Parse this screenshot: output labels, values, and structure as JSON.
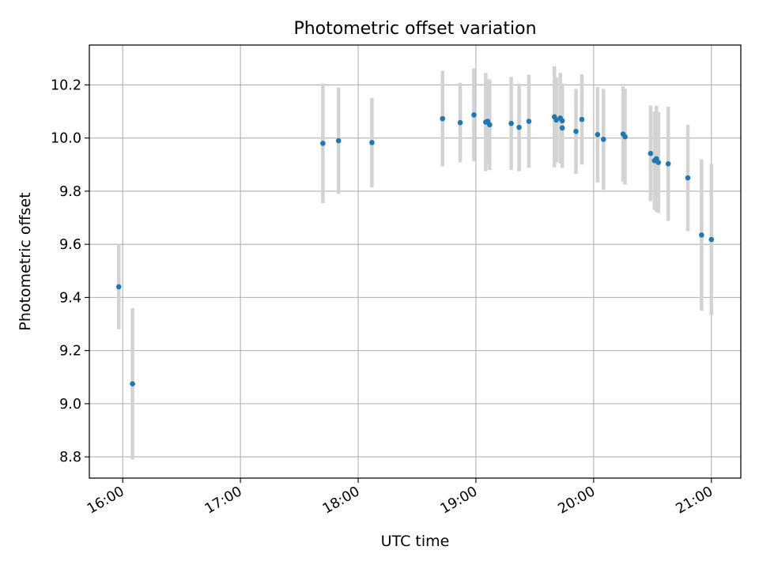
{
  "chart_data": {
    "type": "scatter",
    "title": "Photometric offset variation",
    "xlabel": "UTC time",
    "ylabel": "Photometric offset",
    "x_is_time": true,
    "xlim": [
      "15:43",
      "21:15"
    ],
    "ylim": [
      8.72,
      10.35
    ],
    "xticks": [
      "16:00",
      "17:00",
      "18:00",
      "19:00",
      "20:00",
      "21:00"
    ],
    "yticks": [
      8.8,
      9.0,
      9.2,
      9.4,
      9.6,
      9.8,
      10.0,
      10.2
    ],
    "grid": true,
    "marker_color": "#1f77b4",
    "errorbar_color": "#d3d3d3",
    "series": [
      {
        "points": [
          {
            "x": "15:58",
            "y": 9.44,
            "err": 0.16
          },
          {
            "x": "16:05",
            "y": 9.075,
            "err": 0.285
          },
          {
            "x": "17:42",
            "y": 9.98,
            "err": 0.225
          },
          {
            "x": "17:50",
            "y": 9.99,
            "err": 0.2
          },
          {
            "x": "18:07",
            "y": 9.983,
            "err": 0.168
          },
          {
            "x": "18:43",
            "y": 10.073,
            "err": 0.18
          },
          {
            "x": "18:52",
            "y": 10.058,
            "err": 0.15
          },
          {
            "x": "18:59",
            "y": 10.087,
            "err": 0.175
          },
          {
            "x": "19:05",
            "y": 10.06,
            "err": 0.185
          },
          {
            "x": "19:06",
            "y": 10.063,
            "err": 0.16
          },
          {
            "x": "19:07",
            "y": 10.05,
            "err": 0.17
          },
          {
            "x": "19:18",
            "y": 10.055,
            "err": 0.175
          },
          {
            "x": "19:22",
            "y": 10.04,
            "err": 0.165
          },
          {
            "x": "19:27",
            "y": 10.063,
            "err": 0.175
          },
          {
            "x": "19:40",
            "y": 10.08,
            "err": 0.19
          },
          {
            "x": "19:41",
            "y": 10.068,
            "err": 0.16
          },
          {
            "x": "19:43",
            "y": 10.075,
            "err": 0.17
          },
          {
            "x": "19:44",
            "y": 10.065,
            "err": 0.14
          },
          {
            "x": "19:44",
            "y": 10.038,
            "err": 0.15
          },
          {
            "x": "19:51",
            "y": 10.025,
            "err": 0.16
          },
          {
            "x": "19:54",
            "y": 10.07,
            "err": 0.17
          },
          {
            "x": "20:02",
            "y": 10.013,
            "err": 0.18
          },
          {
            "x": "20:05",
            "y": 9.995,
            "err": 0.19
          },
          {
            "x": "20:15",
            "y": 10.015,
            "err": 0.18
          },
          {
            "x": "20:16",
            "y": 10.005,
            "err": 0.18
          },
          {
            "x": "20:29",
            "y": 9.942,
            "err": 0.18
          },
          {
            "x": "20:31",
            "y": 9.915,
            "err": 0.185
          },
          {
            "x": "20:32",
            "y": 9.922,
            "err": 0.2
          },
          {
            "x": "20:33",
            "y": 9.908,
            "err": 0.19
          },
          {
            "x": "20:38",
            "y": 9.903,
            "err": 0.215
          },
          {
            "x": "20:48",
            "y": 9.85,
            "err": 0.2
          },
          {
            "x": "20:55",
            "y": 9.635,
            "err": 0.285
          },
          {
            "x": "21:00",
            "y": 9.618,
            "err": 0.285
          }
        ]
      }
    ]
  }
}
